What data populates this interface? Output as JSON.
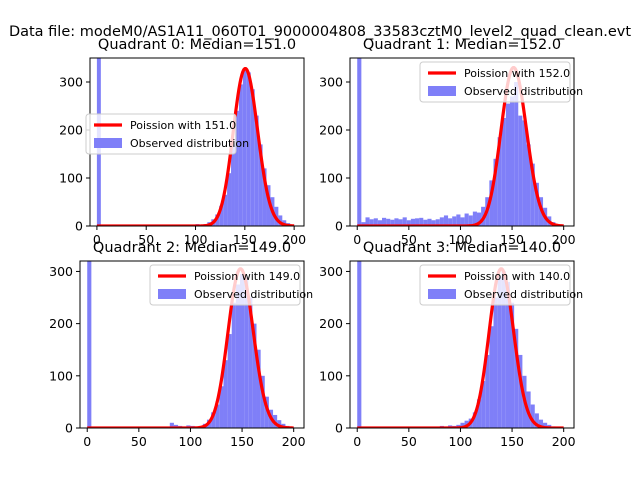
{
  "figure": {
    "suptitle": "Data file: modeM0/AS1A11_060T01_9000004808_33583cztM0_level2_quad_clean.evt"
  },
  "colors": {
    "hist": "#7f7ff8",
    "poisson": "#ff0000",
    "axis": "#000000",
    "background": "#ffffff"
  },
  "chart_data": [
    {
      "type": "bar",
      "title": "Quadrant 0: Median=151.0",
      "xlim": [
        -7,
        210
      ],
      "ylim": [
        0,
        350
      ],
      "xticks": [
        0,
        50,
        100,
        150,
        200
      ],
      "yticks": [
        0,
        100,
        200,
        300
      ],
      "legend_position": "center-left",
      "legend": [
        "Poission with 151.0",
        "Observed distribution"
      ],
      "poisson_mean": 151.0,
      "poisson_peak": 328,
      "hist_bins": [
        0,
        4,
        8,
        12,
        16,
        20,
        24,
        28,
        32,
        36,
        40,
        44,
        48,
        52,
        56,
        60,
        64,
        68,
        72,
        76,
        80,
        84,
        88,
        92,
        96,
        100,
        104,
        108,
        112,
        116,
        120,
        124,
        128,
        132,
        136,
        140,
        144,
        148,
        152,
        156,
        160,
        164,
        168,
        172,
        176,
        180,
        184,
        188,
        192,
        196,
        200
      ],
      "hist_counts": [
        350,
        0,
        0,
        0,
        0,
        0,
        0,
        0,
        0,
        0,
        0,
        0,
        0,
        0,
        0,
        0,
        0,
        0,
        0,
        0,
        3,
        2,
        2,
        3,
        2,
        4,
        3,
        4,
        8,
        14,
        24,
        42,
        65,
        110,
        170,
        240,
        295,
        325,
        320,
        285,
        230,
        170,
        120,
        85,
        60,
        40,
        22,
        12,
        6,
        3
      ]
    },
    {
      "type": "bar",
      "title": "Quadrant 1: Median=152.0",
      "xlim": [
        -7,
        210
      ],
      "ylim": [
        0,
        350
      ],
      "xticks": [
        0,
        50,
        100,
        150,
        200
      ],
      "yticks": [
        0,
        100,
        200,
        300
      ],
      "legend_position": "top-right",
      "legend": [
        "Poission with 152.0",
        "Observed distribution"
      ],
      "poisson_mean": 152.0,
      "poisson_peak": 330,
      "hist_bins": [
        0,
        4,
        8,
        12,
        16,
        20,
        24,
        28,
        32,
        36,
        40,
        44,
        48,
        52,
        56,
        60,
        64,
        68,
        72,
        76,
        80,
        84,
        88,
        92,
        96,
        100,
        104,
        108,
        112,
        116,
        120,
        124,
        128,
        132,
        136,
        140,
        144,
        148,
        152,
        156,
        160,
        164,
        168,
        172,
        176,
        180,
        184,
        188,
        192,
        196,
        200
      ],
      "hist_counts": [
        350,
        8,
        18,
        14,
        16,
        12,
        17,
        15,
        13,
        16,
        14,
        18,
        12,
        15,
        16,
        17,
        13,
        15,
        12,
        14,
        18,
        22,
        16,
        20,
        24,
        18,
        26,
        22,
        30,
        28,
        40,
        60,
        95,
        140,
        185,
        225,
        255,
        270,
        300,
        230,
        220,
        170,
        130,
        90,
        60,
        38,
        20,
        8,
        4,
        2
      ]
    },
    {
      "type": "bar",
      "title": "Quadrant 2: Median=149.0",
      "xlim": [
        -7,
        210
      ],
      "ylim": [
        0,
        320
      ],
      "xticks": [
        0,
        50,
        100,
        150,
        200
      ],
      "yticks": [
        0,
        100,
        200,
        300
      ],
      "legend_position": "top-right",
      "legend": [
        "Poission with 149.0",
        "Observed distribution"
      ],
      "poisson_mean": 149.0,
      "poisson_peak": 305,
      "hist_bins": [
        0,
        4,
        8,
        12,
        16,
        20,
        24,
        28,
        32,
        36,
        40,
        44,
        48,
        52,
        56,
        60,
        64,
        68,
        72,
        76,
        80,
        84,
        88,
        92,
        96,
        100,
        104,
        108,
        112,
        116,
        120,
        124,
        128,
        132,
        136,
        140,
        144,
        148,
        152,
        156,
        160,
        164,
        168,
        172,
        176,
        180,
        184,
        188,
        192,
        196,
        200
      ],
      "hist_counts": [
        320,
        0,
        0,
        0,
        0,
        0,
        0,
        0,
        0,
        0,
        0,
        0,
        0,
        0,
        0,
        2,
        0,
        0,
        0,
        0,
        10,
        6,
        4,
        3,
        5,
        4,
        2,
        4,
        8,
        16,
        30,
        45,
        80,
        130,
        180,
        240,
        275,
        295,
        290,
        250,
        200,
        150,
        100,
        60,
        35,
        25,
        15,
        8,
        4,
        2
      ]
    },
    {
      "type": "bar",
      "title": "Quadrant 3: Median=140.0",
      "xlim": [
        -7,
        210
      ],
      "ylim": [
        0,
        320
      ],
      "xticks": [
        0,
        50,
        100,
        150,
        200
      ],
      "yticks": [
        0,
        100,
        200,
        300
      ],
      "legend_position": "top-right",
      "legend": [
        "Poission with 140.0",
        "Observed distribution"
      ],
      "poisson_mean": 140.0,
      "poisson_peak": 305,
      "hist_bins": [
        0,
        4,
        8,
        12,
        16,
        20,
        24,
        28,
        32,
        36,
        40,
        44,
        48,
        52,
        56,
        60,
        64,
        68,
        72,
        76,
        80,
        84,
        88,
        92,
        96,
        100,
        104,
        108,
        112,
        116,
        120,
        124,
        128,
        132,
        136,
        140,
        144,
        148,
        152,
        156,
        160,
        164,
        168,
        172,
        176,
        180,
        184,
        188,
        192,
        196,
        200
      ],
      "hist_counts": [
        320,
        0,
        0,
        0,
        0,
        0,
        0,
        0,
        0,
        0,
        0,
        0,
        0,
        0,
        0,
        2,
        0,
        0,
        0,
        0,
        4,
        3,
        5,
        4,
        6,
        10,
        14,
        18,
        30,
        55,
        90,
        140,
        195,
        250,
        290,
        300,
        280,
        240,
        190,
        140,
        100,
        70,
        45,
        28,
        16,
        10,
        6,
        3,
        2,
        1
      ]
    }
  ]
}
